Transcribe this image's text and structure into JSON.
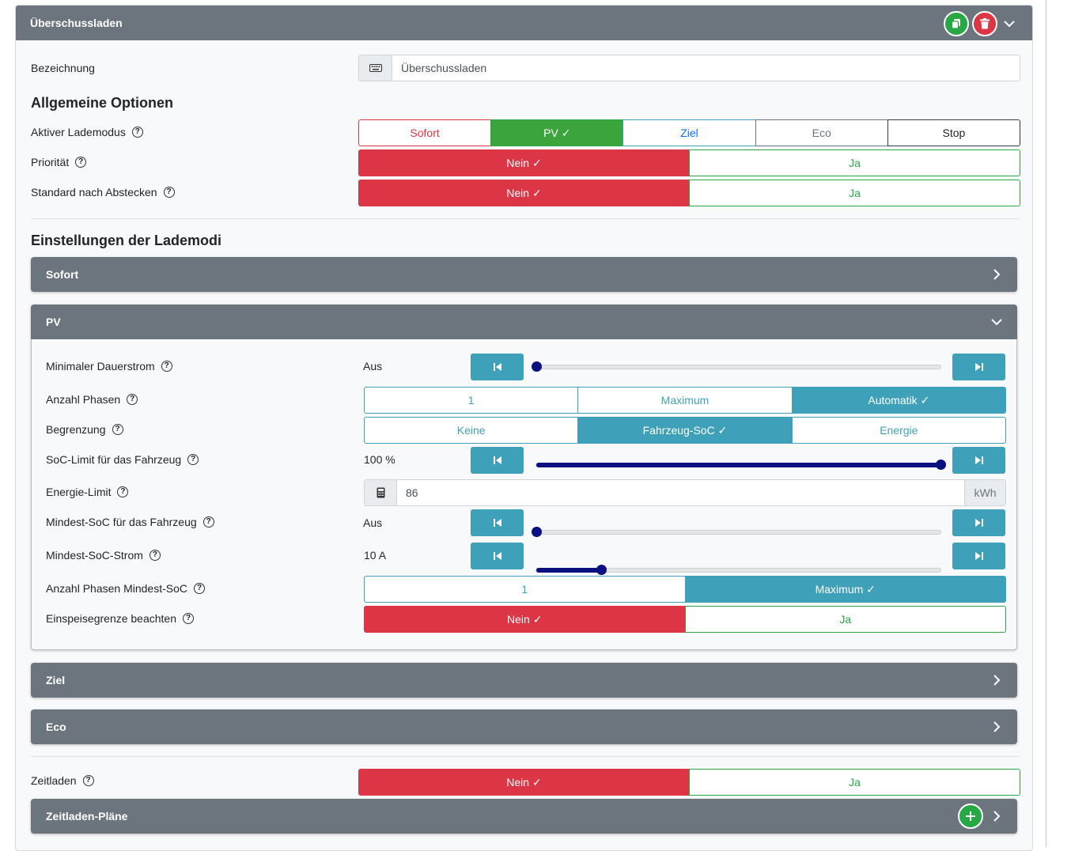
{
  "header": {
    "title": "Überschussladen",
    "copy_icon": "copy-icon",
    "delete_icon": "trash-icon",
    "collapse_icon": "chevron-down-icon"
  },
  "bezeichnung": {
    "label": "Bezeichnung",
    "value": "Überschussladen",
    "icon": "keyboard-icon"
  },
  "allgemein": {
    "title": "Allgemeine Optionen",
    "lademodus": {
      "label": "Aktiver Lademodus",
      "options": [
        "Sofort",
        "PV ✓",
        "Ziel",
        "Eco",
        "Stop"
      ],
      "selected": "PV"
    },
    "prioritaet": {
      "label": "Priorität",
      "nein": "Nein ✓",
      "ja": "Ja"
    },
    "standard": {
      "label": "Standard nach Abstecken",
      "nein": "Nein ✓",
      "ja": "Ja"
    }
  },
  "einstellungen": {
    "title": "Einstellungen der Lademodi",
    "sofort": {
      "title": "Sofort"
    },
    "pv": {
      "title": "PV",
      "min_dauerstrom": {
        "label": "Minimaler Dauerstrom",
        "value": "Aus",
        "level": 0.0
      },
      "anzahl_phasen": {
        "label": "Anzahl Phasen",
        "options": [
          "1",
          "Maximum",
          "Automatik ✓"
        ]
      },
      "begrenzung": {
        "label": "Begrenzung",
        "options": [
          "Keine",
          "Fahrzeug-SoC ✓",
          "Energie"
        ]
      },
      "soc_limit": {
        "label": "SoC-Limit für das Fahrzeug",
        "value": "100 %",
        "level": 1.0
      },
      "energie_limit": {
        "label": "Energie-Limit",
        "value": "86",
        "unit": "kWh",
        "icon": "calculator-icon"
      },
      "mindest_soc": {
        "label": "Mindest-SoC für das Fahrzeug",
        "value": "Aus",
        "level": 0.0
      },
      "mindest_soc_strom": {
        "label": "Mindest-SoC-Strom",
        "value": "10 A",
        "level": 0.16
      },
      "phasen_mindest_soc": {
        "label": "Anzahl Phasen Mindest-SoC",
        "options": [
          "1",
          "Maximum ✓"
        ]
      },
      "einspeisegrenze": {
        "label": "Einspeisegrenze beachten",
        "nein": "Nein ✓",
        "ja": "Ja"
      }
    },
    "ziel": {
      "title": "Ziel"
    },
    "eco": {
      "title": "Eco"
    }
  },
  "zeitladen": {
    "label": "Zeitladen",
    "nein": "Nein ✓",
    "ja": "Ja"
  },
  "zeitladen_plaene": {
    "title": "Zeitladen-Pläne"
  },
  "colors": {
    "red": "#dc3545",
    "green": "#28a745",
    "teal": "#3fa1b9",
    "blue": "#0d6efd",
    "gray": "#6c757d",
    "navy": "#0a1080"
  }
}
